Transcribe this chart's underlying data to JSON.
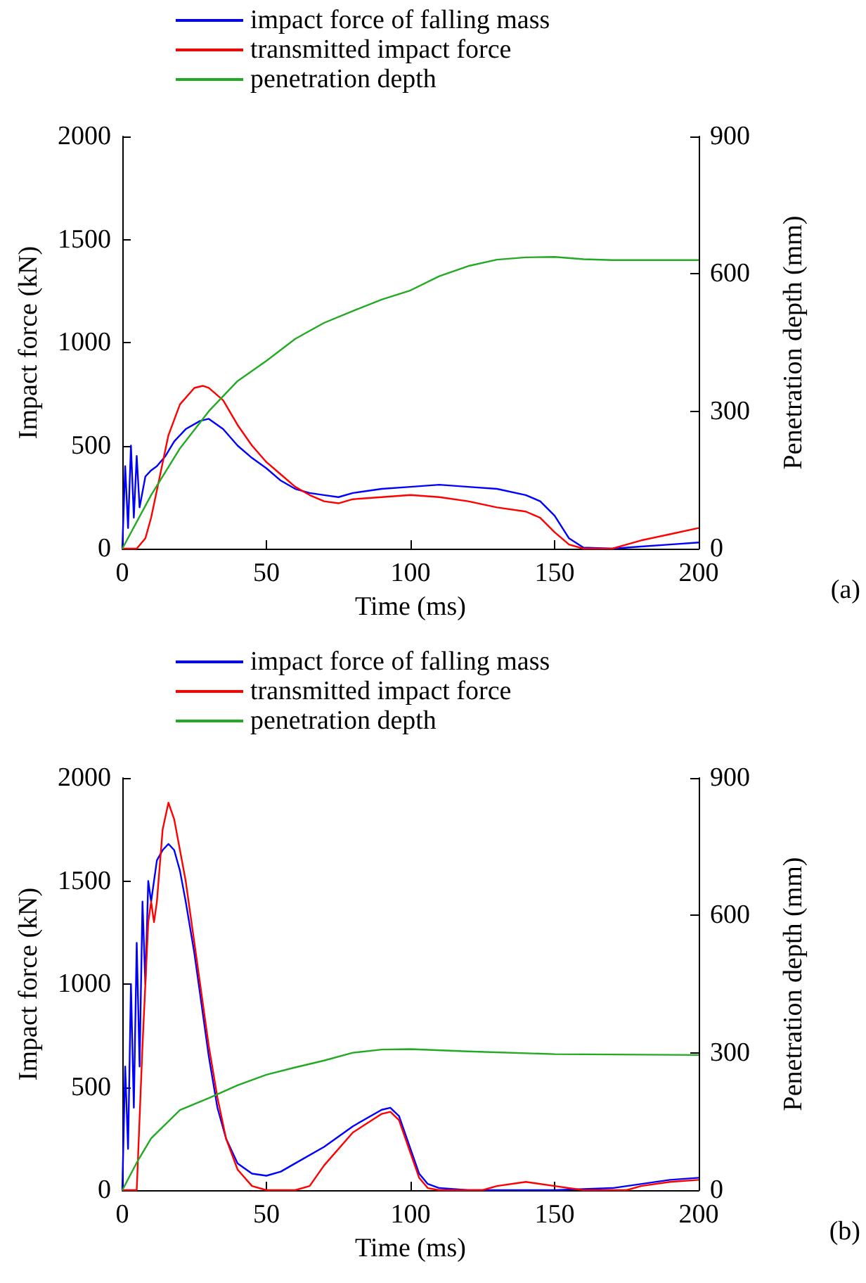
{
  "chart_data": [
    {
      "type": "line",
      "xlabel": "Time (ms)",
      "ylabel": "Impact force (kN)",
      "y2label": "Penetration depth (mm)",
      "annotations": [
        "(a)"
      ],
      "xlim": [
        0,
        200
      ],
      "xticks": [
        0,
        50,
        100,
        150,
        200
      ],
      "ylim": [
        0,
        2000
      ],
      "yticks": [
        0,
        500,
        1000,
        1500,
        2000
      ],
      "y2lim": [
        0,
        900
      ],
      "y2ticks": [
        0,
        300,
        600,
        900
      ],
      "grid": false,
      "legend": "top",
      "marker": "none",
      "line_style": "solid",
      "series": [
        {
          "name": "impact force of falling mass",
          "color": "#0000ff",
          "x": [
            0,
            1,
            2,
            3,
            4,
            5,
            6,
            8,
            10,
            12,
            15,
            18,
            22,
            27,
            30,
            35,
            40,
            45,
            50,
            55,
            60,
            65,
            70,
            75,
            80,
            90,
            100,
            110,
            120,
            130,
            140,
            145,
            150,
            155,
            160,
            170,
            180,
            190,
            200
          ],
          "values": [
            0,
            400,
            100,
            500,
            150,
            450,
            200,
            350,
            380,
            400,
            450,
            520,
            580,
            620,
            630,
            580,
            500,
            440,
            390,
            330,
            290,
            270,
            260,
            250,
            270,
            290,
            300,
            310,
            300,
            290,
            260,
            230,
            160,
            50,
            5,
            0,
            10,
            20,
            30
          ]
        },
        {
          "name": "transmitted impact force",
          "color": "#ff0000",
          "x": [
            0,
            5,
            8,
            10,
            13,
            16,
            20,
            25,
            28,
            30,
            35,
            40,
            45,
            50,
            55,
            60,
            65,
            70,
            75,
            80,
            90,
            100,
            110,
            120,
            130,
            140,
            145,
            150,
            155,
            160,
            170,
            175,
            180,
            190,
            200
          ],
          "values": [
            0,
            0,
            50,
            150,
            350,
            550,
            700,
            780,
            790,
            780,
            720,
            600,
            500,
            420,
            360,
            300,
            260,
            230,
            220,
            240,
            250,
            260,
            250,
            230,
            200,
            180,
            150,
            80,
            20,
            0,
            0,
            20,
            40,
            70,
            100
          ]
        },
        {
          "name": "penetration depth",
          "color": "#22aa22",
          "axis": "y2",
          "x": [
            0,
            10,
            20,
            30,
            40,
            50,
            60,
            70,
            80,
            90,
            100,
            110,
            120,
            130,
            140,
            150,
            160,
            170,
            180,
            200
          ],
          "values": [
            0,
            117,
            219,
            300,
            366,
            410,
            458,
            493,
            519,
            544,
            564,
            595,
            617,
            631,
            636,
            637,
            632,
            630,
            630,
            630
          ]
        }
      ]
    },
    {
      "type": "line",
      "xlabel": "Time (ms)",
      "ylabel": "Impact force (kN)",
      "y2label": "Penetration depth (mm)",
      "annotations": [
        "(b)"
      ],
      "xlim": [
        0,
        200
      ],
      "xticks": [
        0,
        50,
        100,
        150,
        200
      ],
      "ylim": [
        0,
        2000
      ],
      "yticks": [
        0,
        500,
        1000,
        1500,
        2000
      ],
      "y2lim": [
        0,
        900
      ],
      "y2ticks": [
        0,
        300,
        600,
        900
      ],
      "grid": false,
      "legend": "top",
      "marker": "none",
      "line_style": "solid",
      "series": [
        {
          "name": "impact force of falling mass",
          "color": "#0000ff",
          "x": [
            0,
            1,
            2,
            3,
            4,
            5,
            6,
            7,
            8,
            9,
            10,
            12,
            14,
            16,
            18,
            20,
            22,
            25,
            28,
            30,
            33,
            36,
            40,
            45,
            50,
            55,
            60,
            70,
            80,
            90,
            93,
            96,
            100,
            103,
            106,
            110,
            120,
            150,
            170,
            190,
            200
          ],
          "values": [
            0,
            600,
            200,
            1000,
            400,
            1200,
            600,
            1400,
            1000,
            1500,
            1400,
            1600,
            1650,
            1680,
            1650,
            1550,
            1400,
            1150,
            850,
            650,
            400,
            250,
            130,
            80,
            70,
            90,
            130,
            210,
            310,
            390,
            400,
            360,
            200,
            80,
            30,
            10,
            0,
            0,
            10,
            50,
            60
          ]
        },
        {
          "name": "transmitted impact force",
          "color": "#ff0000",
          "x": [
            0,
            5,
            7,
            8,
            9,
            10,
            11,
            12,
            14,
            16,
            18,
            20,
            22,
            25,
            28,
            30,
            33,
            36,
            40,
            45,
            50,
            60,
            65,
            70,
            80,
            90,
            93,
            96,
            100,
            103,
            106,
            110,
            125,
            130,
            140,
            150,
            160,
            175,
            180,
            190,
            200
          ],
          "values": [
            0,
            0,
            700,
            1000,
            1300,
            1400,
            1300,
            1400,
            1750,
            1880,
            1800,
            1650,
            1500,
            1200,
            900,
            700,
            450,
            250,
            100,
            20,
            0,
            0,
            20,
            120,
            280,
            370,
            380,
            340,
            180,
            60,
            10,
            0,
            0,
            20,
            40,
            20,
            0,
            0,
            20,
            40,
            50
          ]
        },
        {
          "name": "penetration depth",
          "color": "#22aa22",
          "axis": "y2",
          "x": [
            0,
            5,
            10,
            20,
            30,
            40,
            50,
            60,
            70,
            80,
            90,
            100,
            120,
            150,
            200
          ],
          "values": [
            0,
            60,
            113,
            175,
            201,
            229,
            252,
            268,
            283,
            300,
            307,
            308,
            303,
            297,
            295
          ]
        }
      ]
    }
  ]
}
